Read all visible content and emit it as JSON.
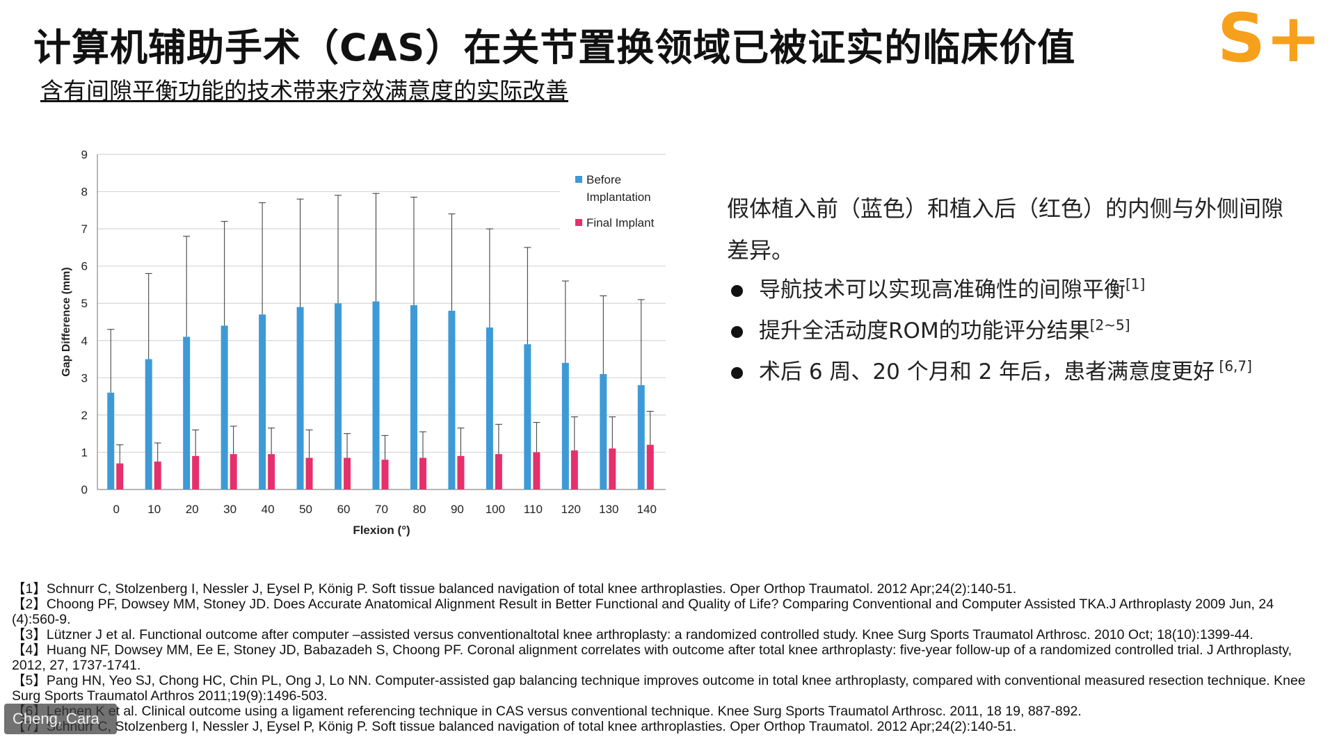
{
  "slide": {
    "title": "计算机辅助手术（CAS）在关节置换领域已被证实的临床价值",
    "subtitle": "含有间隙平衡功能的技术带来疗效满意度的实际改善",
    "logo_text": "S+N",
    "logo_color": "#f7a01c"
  },
  "chart_data": {
    "type": "bar",
    "xlabel": "Flexion (°)",
    "ylabel": "Gap Difference (mm)",
    "ylim": [
      0,
      9
    ],
    "yticks": [
      "0",
      "1",
      "2",
      "3",
      "4",
      "5",
      "6",
      "7",
      "8",
      "9"
    ],
    "categories": [
      "0",
      "10",
      "20",
      "30",
      "40",
      "50",
      "60",
      "70",
      "80",
      "90",
      "100",
      "110",
      "120",
      "130",
      "140"
    ],
    "grid": true,
    "legend_position": "top-right",
    "series": [
      {
        "name": "Before Implantation",
        "legend_lines": [
          "Before",
          "Implantation"
        ],
        "color": "#3d9ad6",
        "values": [
          2.6,
          3.5,
          4.1,
          4.4,
          4.7,
          4.9,
          5.0,
          5.05,
          4.95,
          4.8,
          4.35,
          3.9,
          3.4,
          3.1,
          2.8
        ],
        "error_upper": [
          4.3,
          5.8,
          6.8,
          7.2,
          7.7,
          7.8,
          7.9,
          7.95,
          7.85,
          7.4,
          7.0,
          6.5,
          5.6,
          5.2,
          5.1
        ]
      },
      {
        "name": "Final Implant",
        "legend_lines": [
          "Final Implant"
        ],
        "color": "#e6306b",
        "values": [
          0.7,
          0.75,
          0.9,
          0.95,
          0.95,
          0.85,
          0.85,
          0.8,
          0.85,
          0.9,
          0.95,
          1.0,
          1.05,
          1.1,
          1.2
        ],
        "error_upper": [
          1.2,
          1.25,
          1.6,
          1.7,
          1.65,
          1.6,
          1.5,
          1.45,
          1.55,
          1.65,
          1.75,
          1.8,
          1.95,
          1.95,
          2.1
        ]
      }
    ]
  },
  "description": "假体植入前（蓝色）和植入后（红色）的内侧与外侧间隙差异。",
  "bullets": [
    {
      "text": "导航技术可以实现高准确性的间隙平衡",
      "sup": "[1]"
    },
    {
      "text": "提升全活动度ROM的功能评分结果",
      "sup": "[2~5]"
    },
    {
      "text": "术后 6 周、20 个月和 2 年后，患者满意度更好",
      "sup": " [6,7]"
    }
  ],
  "references": [
    "【1】Schnurr C, Stolzenberg I, Nessler J, Eysel P, König P. Soft tissue balanced navigation of total knee arthroplasties. Oper Orthop Traumatol. 2012 Apr;24(2):140-51.",
    "【2】Choong PF, Dowsey MM, Stoney JD. Does Accurate Anatomical Alignment Result in Better Functional and Quality of Life? Comparing Conventional and Computer Assisted TKA.J Arthroplasty 2009 Jun, 24 (4):560-9.",
    "【3】Lützner J et al. Functional outcome after computer –assisted versus conventionaltotal knee arthroplasty: a randomized controlled study. Knee Surg Sports Traumatol Arthrosc. 2010 Oct; 18(10):1399-44.",
    "【4】Huang NF, Dowsey MM, Ee E, Stoney JD, Babazadeh S, Choong PF. Coronal alignment correlates with outcome after total knee arthroplasty: five-year follow-up of a randomized controlled trial. J Arthroplasty, 2012, 27, 1737-1741.",
    "【5】Pang HN, Yeo SJ, Chong HC, Chin PL, Ong J, Lo NN. Computer-assisted gap balancing technique improves outcome in total knee arthroplasty, compared with conventional measured resection technique. Knee Surg Sports Traumatol Arthros 2011;19(9):1496-503.",
    "【6】Lehnen K et al. Clinical outcome using a ligament referencing technique in CAS versus conventional technique. Knee Surg Sports Traumatol Arthrosc. 2011, 18 19, 887-892.",
    "【7】Schnurr C, Stolzenberg I, Nessler J, Eysel P, König P. Soft tissue balanced navigation of total knee arthroplasties. Oper Orthop Traumatol. 2012 Apr;24(2):140-51."
  ],
  "participant_label": "Cheng, Cara"
}
